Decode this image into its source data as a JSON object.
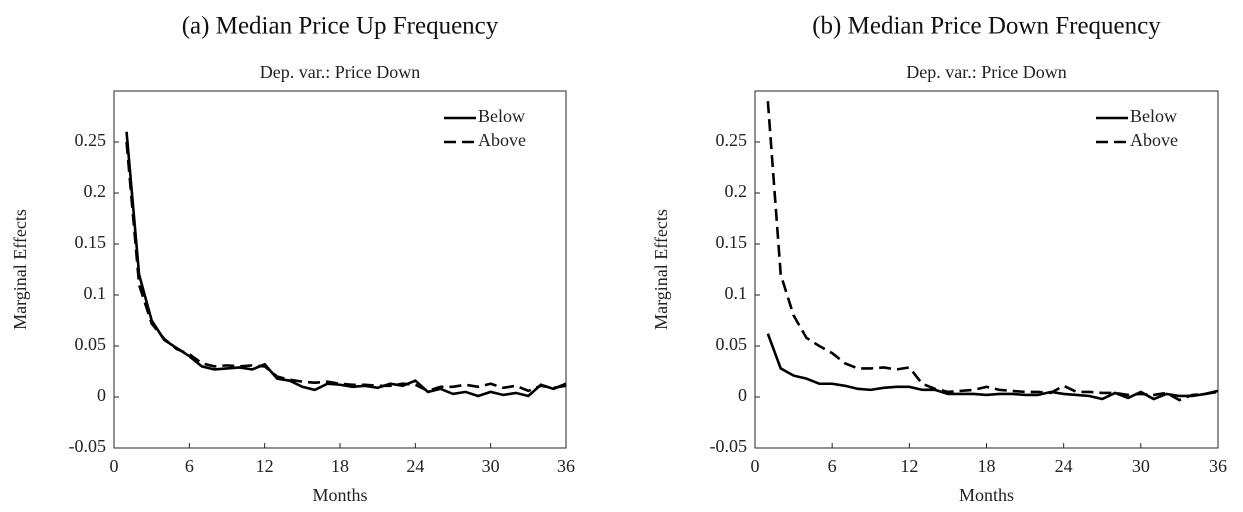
{
  "chart_data": [
    {
      "type": "line",
      "caption": "(a) Median Price Up Frequency",
      "title": "Dep. var.: Price Down",
      "x_label": "Months",
      "y_label": "Marginal Effects",
      "x": [
        1,
        2,
        3,
        4,
        5,
        6,
        7,
        8,
        9,
        10,
        11,
        12,
        13,
        14,
        15,
        16,
        17,
        18,
        19,
        20,
        21,
        22,
        23,
        24,
        25,
        26,
        27,
        28,
        29,
        30,
        31,
        32,
        33,
        34,
        35,
        36
      ],
      "series": [
        {
          "name": "Below",
          "color": "#000000",
          "linestyle": "solid",
          "values": [
            0.26,
            0.12,
            0.075,
            0.056,
            0.048,
            0.04,
            0.03,
            0.027,
            0.028,
            0.029,
            0.027,
            0.032,
            0.018,
            0.016,
            0.01,
            0.007,
            0.013,
            0.012,
            0.01,
            0.011,
            0.009,
            0.013,
            0.011,
            0.016,
            0.005,
            0.008,
            0.003,
            0.005,
            0.001,
            0.005,
            0.002,
            0.004,
            0.001,
            0.012,
            0.008,
            0.013
          ]
        },
        {
          "name": "Above",
          "color": "#000000",
          "linestyle": "dashed",
          "values": [
            0.25,
            0.11,
            0.072,
            0.057,
            0.047,
            0.042,
            0.033,
            0.03,
            0.031,
            0.03,
            0.031,
            0.03,
            0.02,
            0.017,
            0.015,
            0.014,
            0.015,
            0.013,
            0.012,
            0.012,
            0.011,
            0.011,
            0.013,
            0.012,
            0.006,
            0.01,
            0.01,
            0.012,
            0.01,
            0.013,
            0.009,
            0.011,
            0.006,
            0.011,
            0.009,
            0.011
          ]
        }
      ],
      "xlim": [
        0,
        36
      ],
      "xticks": [
        0,
        6,
        12,
        18,
        24,
        30,
        36
      ],
      "ylim": [
        -0.05,
        0.3
      ],
      "yticks": [
        -0.05,
        0,
        0.05,
        0.1,
        0.15,
        0.2,
        0.25
      ],
      "legend": "upper right",
      "grid": false
    },
    {
      "type": "line",
      "caption": "(b) Median Price Down Frequency",
      "title": "Dep. var.: Price Down",
      "x_label": "Months",
      "y_label": "Marginal Effects",
      "x": [
        1,
        2,
        3,
        4,
        5,
        6,
        7,
        8,
        9,
        10,
        11,
        12,
        13,
        14,
        15,
        16,
        17,
        18,
        19,
        20,
        21,
        22,
        23,
        24,
        25,
        26,
        27,
        28,
        29,
        30,
        31,
        32,
        33,
        34,
        35,
        36
      ],
      "series": [
        {
          "name": "Below",
          "color": "#000000",
          "linestyle": "solid",
          "values": [
            0.062,
            0.028,
            0.021,
            0.018,
            0.013,
            0.013,
            0.011,
            0.008,
            0.007,
            0.009,
            0.01,
            0.01,
            0.007,
            0.007,
            0.003,
            0.003,
            0.003,
            0.002,
            0.003,
            0.003,
            0.002,
            0.002,
            0.005,
            0.003,
            0.002,
            0.001,
            -0.002,
            0.004,
            -0.001,
            0.005,
            -0.002,
            0.003,
            0.001,
            0.001,
            0.003,
            0.006
          ]
        },
        {
          "name": "Above",
          "color": "#000000",
          "linestyle": "dashed",
          "values": [
            0.29,
            0.12,
            0.08,
            0.058,
            0.05,
            0.043,
            0.033,
            0.028,
            0.028,
            0.029,
            0.027,
            0.029,
            0.013,
            0.008,
            0.005,
            0.006,
            0.007,
            0.01,
            0.007,
            0.006,
            0.005,
            0.005,
            0.004,
            0.011,
            0.005,
            0.005,
            0.004,
            0.004,
            0.002,
            0.003,
            0.002,
            0.004,
            -0.003,
            0.002,
            0.003,
            0.005
          ]
        }
      ],
      "xlim": [
        0,
        36
      ],
      "xticks": [
        0,
        6,
        12,
        18,
        24,
        30,
        36
      ],
      "ylim": [
        -0.05,
        0.3
      ],
      "yticks": [
        -0.05,
        0,
        0.05,
        0.1,
        0.15,
        0.2,
        0.25
      ],
      "legend": "upper right",
      "grid": false
    }
  ]
}
